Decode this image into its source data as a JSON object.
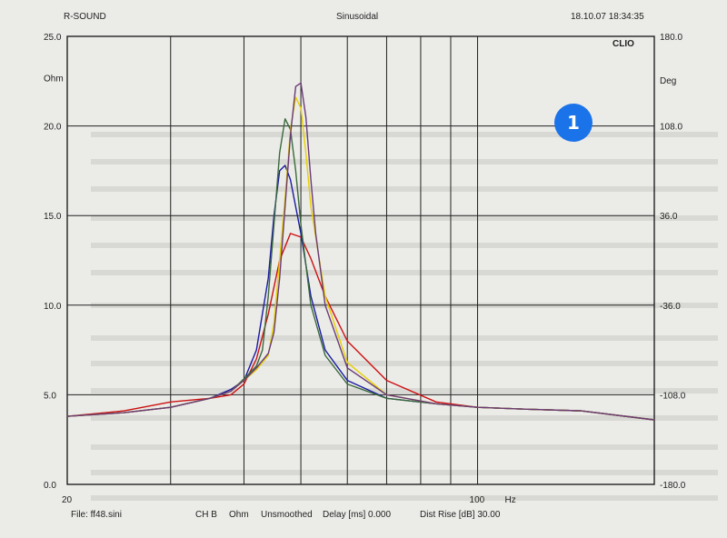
{
  "header": {
    "left": "R-SOUND",
    "center": "Sinusoidal",
    "right": "18.10.07 18:34:35",
    "corner_mark": "CLIO"
  },
  "badge": {
    "label": "1",
    "color": "#1a73e8"
  },
  "footer": {
    "file": "File: ff48.sini",
    "channel": "CH B",
    "unit": "Ohm",
    "smoothing": "Unsmoothed",
    "delay": "Delay [ms] 0.000",
    "dist_rise": "Dist Rise [dB] 30.00"
  },
  "chart_data": {
    "type": "line",
    "xscale": "log",
    "xlim": [
      20,
      200
    ],
    "x_ticks": [
      "20",
      "100"
    ],
    "x_unit": "Hz",
    "ylim": [
      0,
      25
    ],
    "y_ticks": [
      "0.0",
      "5.0",
      "10.0",
      "15.0",
      "20.0",
      "25.0"
    ],
    "y_unit": "Ohm",
    "y2lim": [
      -180,
      180
    ],
    "y2_ticks": [
      "-180.0",
      "-108.0",
      "-36.0",
      "36.0",
      "108.0",
      "180.0"
    ],
    "y2_unit": "Deg",
    "grid": true,
    "series": [
      {
        "color": "#cc1111",
        "x": [
          20,
          25,
          30,
          35,
          38,
          40,
          42,
          44,
          46,
          48,
          50,
          52,
          55,
          60,
          70,
          85,
          100,
          120,
          150,
          200
        ],
        "y": [
          3.8,
          4.1,
          4.6,
          4.8,
          5.0,
          5.6,
          7.0,
          9.5,
          12.5,
          14.0,
          13.8,
          12.6,
          10.5,
          8.0,
          5.8,
          4.6,
          4.3,
          4.2,
          4.1,
          3.6
        ]
      },
      {
        "color": "#1a1aa0",
        "x": [
          20,
          25,
          30,
          35,
          38,
          40,
          42,
          44,
          45,
          46,
          47,
          48,
          50,
          52,
          55,
          60,
          70,
          85,
          100,
          120,
          150,
          200
        ],
        "y": [
          3.8,
          4.0,
          4.3,
          4.8,
          5.3,
          5.8,
          7.5,
          11.5,
          15.0,
          17.5,
          17.8,
          17.0,
          14.0,
          10.5,
          7.5,
          5.8,
          4.8,
          4.5,
          4.3,
          4.2,
          4.1,
          3.6
        ]
      },
      {
        "color": "#3a6a3a",
        "x": [
          20,
          25,
          30,
          35,
          38,
          40,
          42,
          43,
          44,
          45,
          46,
          47,
          48,
          49,
          50,
          52,
          55,
          60,
          70,
          85,
          100,
          120,
          150,
          200
        ],
        "y": [
          3.8,
          4.0,
          4.3,
          4.8,
          5.2,
          5.9,
          6.6,
          7.5,
          10.5,
          14.5,
          18.5,
          20.4,
          19.8,
          17.5,
          14.5,
          10.0,
          7.2,
          5.6,
          4.8,
          4.5,
          4.3,
          4.2,
          4.1,
          3.6
        ]
      },
      {
        "color": "#e6d000",
        "x": [
          20,
          25,
          30,
          35,
          38,
          40,
          42,
          44,
          45,
          46,
          47,
          48,
          49,
          50,
          51,
          52,
          55,
          60,
          70,
          85,
          100,
          120,
          150,
          200
        ],
        "y": [
          3.8,
          4.0,
          4.3,
          4.8,
          5.2,
          5.8,
          6.4,
          7.2,
          9.0,
          12.5,
          16.0,
          19.8,
          21.6,
          21.0,
          18.5,
          15.5,
          10.5,
          6.8,
          5.0,
          4.5,
          4.3,
          4.2,
          4.1,
          3.6
        ]
      },
      {
        "color": "#6a3a78",
        "x": [
          20,
          25,
          30,
          35,
          38,
          40,
          42,
          44,
          45,
          46,
          47,
          48,
          49,
          50,
          51,
          52,
          53,
          55,
          60,
          70,
          85,
          100,
          120,
          150,
          200
        ],
        "y": [
          3.8,
          4.0,
          4.3,
          4.8,
          5.2,
          5.8,
          6.5,
          7.3,
          8.5,
          11.5,
          15.5,
          19.5,
          22.2,
          22.4,
          20.5,
          17.0,
          14.0,
          10.0,
          6.5,
          5.0,
          4.5,
          4.3,
          4.2,
          4.1,
          3.6
        ]
      }
    ]
  }
}
